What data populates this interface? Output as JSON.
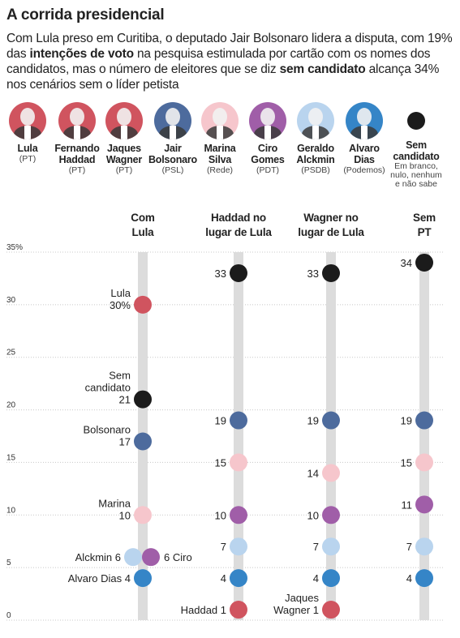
{
  "title": "A corrida presidencial",
  "subtitle": {
    "p1": "Com Lula preso em Curitiba, o deputado Jair Bolsonaro lidera a disputa, com 19% das ",
    "b1": "intenções de voto",
    "p2": " na pesquisa estimulada por cartão com os nomes dos candidatos, mas o número de eleitores que se diz ",
    "b2": "sem candidato",
    "p3": " alcança 34% nos cenários sem o líder petista"
  },
  "candidates": [
    {
      "name1": "Lula",
      "name2": "",
      "party": "(PT)",
      "color": "#d0545f",
      "icon": "lula-portrait"
    },
    {
      "name1": "Fernando",
      "name2": "Haddad",
      "party": "(PT)",
      "color": "#d0545f",
      "icon": "haddad-portrait"
    },
    {
      "name1": "Jaques",
      "name2": "Wagner",
      "party": "(PT)",
      "color": "#d0545f",
      "icon": "wagner-portrait"
    },
    {
      "name1": "Jair",
      "name2": "Bolsonaro",
      "party": "(PSL)",
      "color": "#4d6b9d",
      "icon": "bolsonaro-portrait"
    },
    {
      "name1": "Marina",
      "name2": "Silva",
      "party": "(Rede)",
      "color": "#f6c6cc",
      "icon": "marina-portrait"
    },
    {
      "name1": "Ciro",
      "name2": "Gomes",
      "party": "(PDT)",
      "color": "#a05ea8",
      "icon": "ciro-portrait"
    },
    {
      "name1": "Geraldo",
      "name2": "Alckmin",
      "party": "(PSDB)",
      "color": "#b9d4ee",
      "icon": "alckmin-portrait"
    },
    {
      "name1": "Alvaro",
      "name2": "Dias",
      "party": "(Podemos)",
      "color": "#3585c7",
      "icon": "alvaro-portrait"
    },
    {
      "name1": "Sem",
      "name2": "candidato",
      "party": "",
      "note": [
        "Em branco,",
        "nulo, nenhum",
        "e não sabe"
      ],
      "color": "#1b1b1b",
      "icon": "black-dot"
    }
  ],
  "chart_data": {
    "type": "scatter",
    "ylim": [
      0,
      35
    ],
    "yticks": [
      0,
      5,
      10,
      15,
      20,
      25,
      30,
      35
    ],
    "ytick_labels": [
      "0",
      "5",
      "10",
      "15",
      "20",
      "25",
      "30",
      "35%"
    ],
    "columns": [
      {
        "h1": "Com",
        "h2": "Lula"
      },
      {
        "h1": "Haddad no",
        "h2": "lugar de Lula"
      },
      {
        "h1": "Wagner no",
        "h2": "lugar de Lula"
      },
      {
        "h1": "Sem",
        "h2": "PT"
      }
    ],
    "series": [
      {
        "name": "Lula",
        "color": "#d0545f",
        "values": [
          30,
          null,
          null,
          null
        ],
        "labels": [
          [
            "Lula",
            "30%"
          ],
          null,
          null,
          null
        ]
      },
      {
        "name": "Sem candidato",
        "color": "#1b1b1b",
        "values": [
          21,
          33,
          33,
          34
        ],
        "labels": [
          [
            "Sem",
            "candidato",
            "21"
          ],
          [
            "33"
          ],
          [
            "33"
          ],
          [
            "34"
          ]
        ]
      },
      {
        "name": "Bolsonaro",
        "color": "#4d6b9d",
        "values": [
          17,
          19,
          19,
          19
        ],
        "labels": [
          [
            "Bolsonaro",
            "17"
          ],
          [
            "19"
          ],
          [
            "19"
          ],
          [
            "19"
          ]
        ]
      },
      {
        "name": "Marina",
        "color": "#f6c6cc",
        "values": [
          10,
          15,
          14,
          15
        ],
        "labels": [
          [
            "Marina",
            "10"
          ],
          [
            "15"
          ],
          [
            "14"
          ],
          [
            "15"
          ]
        ]
      },
      {
        "name": "Ciro",
        "color": "#a05ea8",
        "values": [
          6,
          10,
          10,
          11
        ],
        "labels": [
          [
            "6 Ciro"
          ],
          [
            "10"
          ],
          [
            "10"
          ],
          [
            "11"
          ]
        ]
      },
      {
        "name": "Alckmin",
        "color": "#b9d4ee",
        "values": [
          6,
          7,
          7,
          7
        ],
        "labels": [
          [
            "Alckmin 6"
          ],
          [
            "7"
          ],
          [
            "7"
          ],
          [
            "7"
          ]
        ]
      },
      {
        "name": "Alvaro Dias",
        "color": "#3585c7",
        "values": [
          4,
          4,
          4,
          4
        ],
        "labels": [
          [
            "Alvaro Dias 4"
          ],
          [
            "4"
          ],
          [
            "4"
          ],
          [
            "4"
          ]
        ]
      },
      {
        "name": "Haddad",
        "color": "#d0545f",
        "values": [
          null,
          1,
          null,
          null
        ],
        "labels": [
          null,
          [
            "Haddad 1"
          ],
          null,
          null
        ]
      },
      {
        "name": "Jaques Wagner",
        "color": "#d0545f",
        "values": [
          null,
          null,
          1,
          null
        ],
        "labels": [
          null,
          null,
          [
            "Jaques",
            "Wagner 1"
          ],
          null
        ]
      }
    ]
  }
}
